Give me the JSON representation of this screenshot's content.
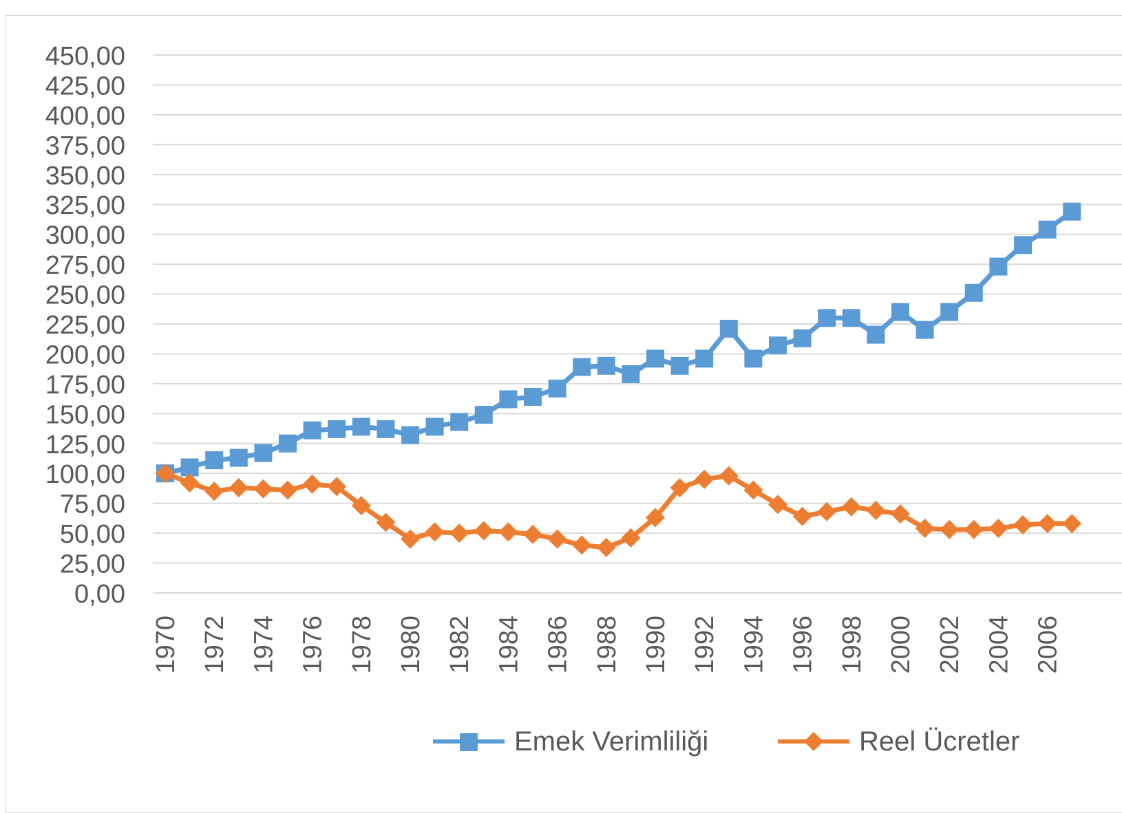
{
  "chart_data": {
    "type": "line",
    "title": "",
    "xlabel": "",
    "ylabel": "",
    "x": [
      1970,
      1971,
      1972,
      1973,
      1974,
      1975,
      1976,
      1977,
      1978,
      1979,
      1980,
      1981,
      1982,
      1983,
      1984,
      1985,
      1986,
      1987,
      1988,
      1989,
      1990,
      1991,
      1992,
      1993,
      1994,
      1995,
      1996,
      1997,
      1998,
      1999,
      2000,
      2001,
      2002,
      2003,
      2004,
      2005,
      2006,
      2007
    ],
    "x_tick_labels": [
      "1970",
      "1972",
      "1974",
      "1976",
      "1978",
      "1980",
      "1982",
      "1984",
      "1986",
      "1988",
      "1990",
      "1992",
      "1994",
      "1996",
      "1998",
      "2000",
      "2002",
      "2004",
      "2006"
    ],
    "y_tick_labels": [
      "0,00",
      "25,00",
      "50,00",
      "75,00",
      "100,00",
      "125,00",
      "150,00",
      "175,00",
      "200,00",
      "225,00",
      "250,00",
      "275,00",
      "300,00",
      "325,00",
      "350,00",
      "375,00",
      "400,00",
      "425,00",
      "450,00"
    ],
    "ylim": [
      0,
      450
    ],
    "grid": true,
    "legend_position": "bottom",
    "series": [
      {
        "name": "Emek Verimliliği",
        "color": "#5b9bd5",
        "marker": "square",
        "values": [
          100,
          105,
          111,
          113,
          117,
          125,
          136,
          137,
          139,
          137,
          132,
          139,
          143,
          149,
          162,
          164,
          171,
          189,
          190,
          183,
          196,
          190,
          196,
          221,
          196,
          207,
          213,
          230,
          230,
          216,
          235,
          220,
          235,
          251,
          273,
          291,
          304,
          319
        ]
      },
      {
        "name": "Reel Ücretler",
        "color": "#ed7d31",
        "marker": "diamond",
        "values": [
          100,
          92,
          85,
          88,
          87,
          86,
          91,
          89,
          73,
          59,
          45,
          51,
          50,
          52,
          51,
          49,
          45,
          40,
          38,
          46,
          63,
          88,
          95,
          98,
          86,
          74,
          64,
          68,
          72,
          69,
          66,
          54,
          53,
          53,
          54,
          57,
          58,
          58
        ]
      }
    ]
  }
}
